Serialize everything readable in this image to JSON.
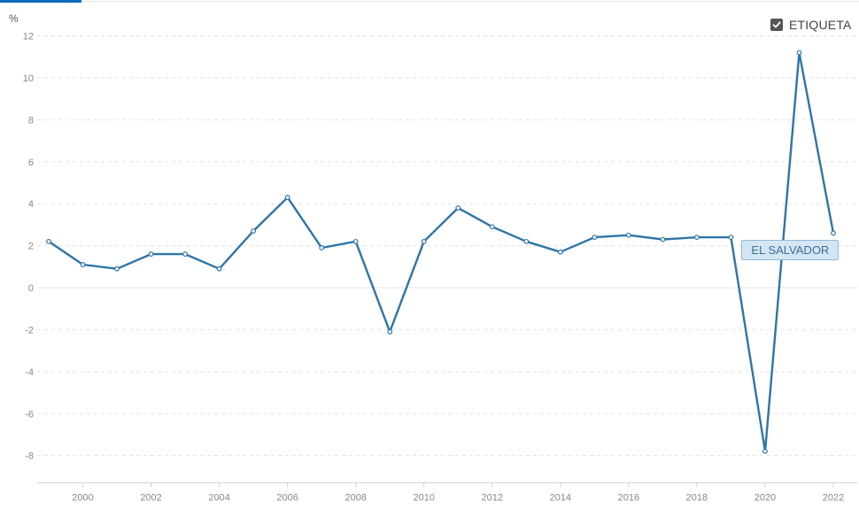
{
  "legend": {
    "checkbox_checked": true,
    "label": "ETIQUETA"
  },
  "chart_data": {
    "type": "line",
    "unit_label": "%",
    "title": "",
    "xlabel": "",
    "ylabel": "",
    "xlim": [
      1999,
      2022
    ],
    "ylim": [
      -9,
      12
    ],
    "y_ticks": [
      12,
      10,
      8,
      6,
      4,
      2,
      0,
      -2,
      -4,
      -6,
      -8
    ],
    "x_ticks": [
      2000,
      2002,
      2004,
      2006,
      2008,
      2010,
      2012,
      2014,
      2016,
      2018,
      2020,
      2022
    ],
    "grid": "horizontal-dashed",
    "series": [
      {
        "name": "EL SALVADOR",
        "color": "#2e75a8",
        "x": [
          1999,
          2000,
          2001,
          2002,
          2003,
          2004,
          2005,
          2006,
          2007,
          2008,
          2009,
          2010,
          2011,
          2012,
          2013,
          2014,
          2015,
          2016,
          2017,
          2018,
          2019,
          2020,
          2021,
          2022
        ],
        "values": [
          2.2,
          1.1,
          0.9,
          1.6,
          1.6,
          0.9,
          2.7,
          4.3,
          1.9,
          2.2,
          -2.1,
          2.2,
          3.8,
          2.9,
          2.2,
          1.7,
          2.4,
          2.5,
          2.3,
          2.4,
          2.4,
          -7.8,
          11.2,
          2.6
        ]
      }
    ]
  }
}
